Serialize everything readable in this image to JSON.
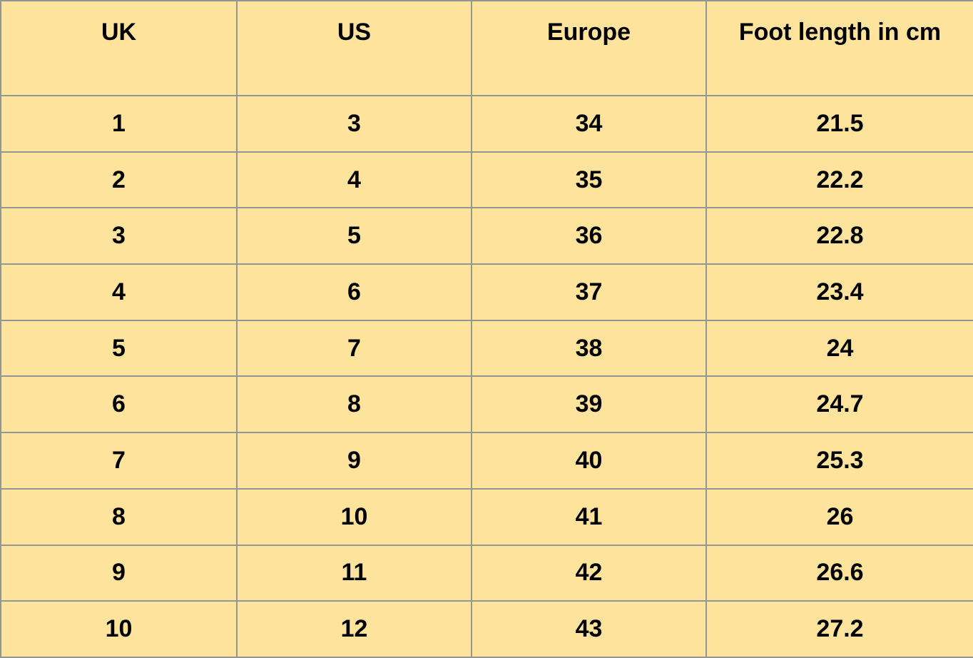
{
  "chart_data": {
    "type": "table",
    "columns": [
      "UK",
      "US",
      "Europe",
      "Foot length in cm"
    ],
    "rows": [
      [
        "1",
        "3",
        "34",
        "21.5"
      ],
      [
        "2",
        "4",
        "35",
        "22.2"
      ],
      [
        "3",
        "5",
        "36",
        "22.8"
      ],
      [
        "4",
        "6",
        "37",
        "23.4"
      ],
      [
        "5",
        "7",
        "38",
        "24"
      ],
      [
        "6",
        "8",
        "39",
        "24.7"
      ],
      [
        "7",
        "9",
        "40",
        "25.3"
      ],
      [
        "8",
        "10",
        "41",
        "26"
      ],
      [
        "9",
        "11",
        "42",
        "26.6"
      ],
      [
        "10",
        "12",
        "43",
        "27.2"
      ]
    ]
  },
  "colors": {
    "cell_bg": "#fde39b",
    "border": "#949494",
    "text": "#000000"
  }
}
